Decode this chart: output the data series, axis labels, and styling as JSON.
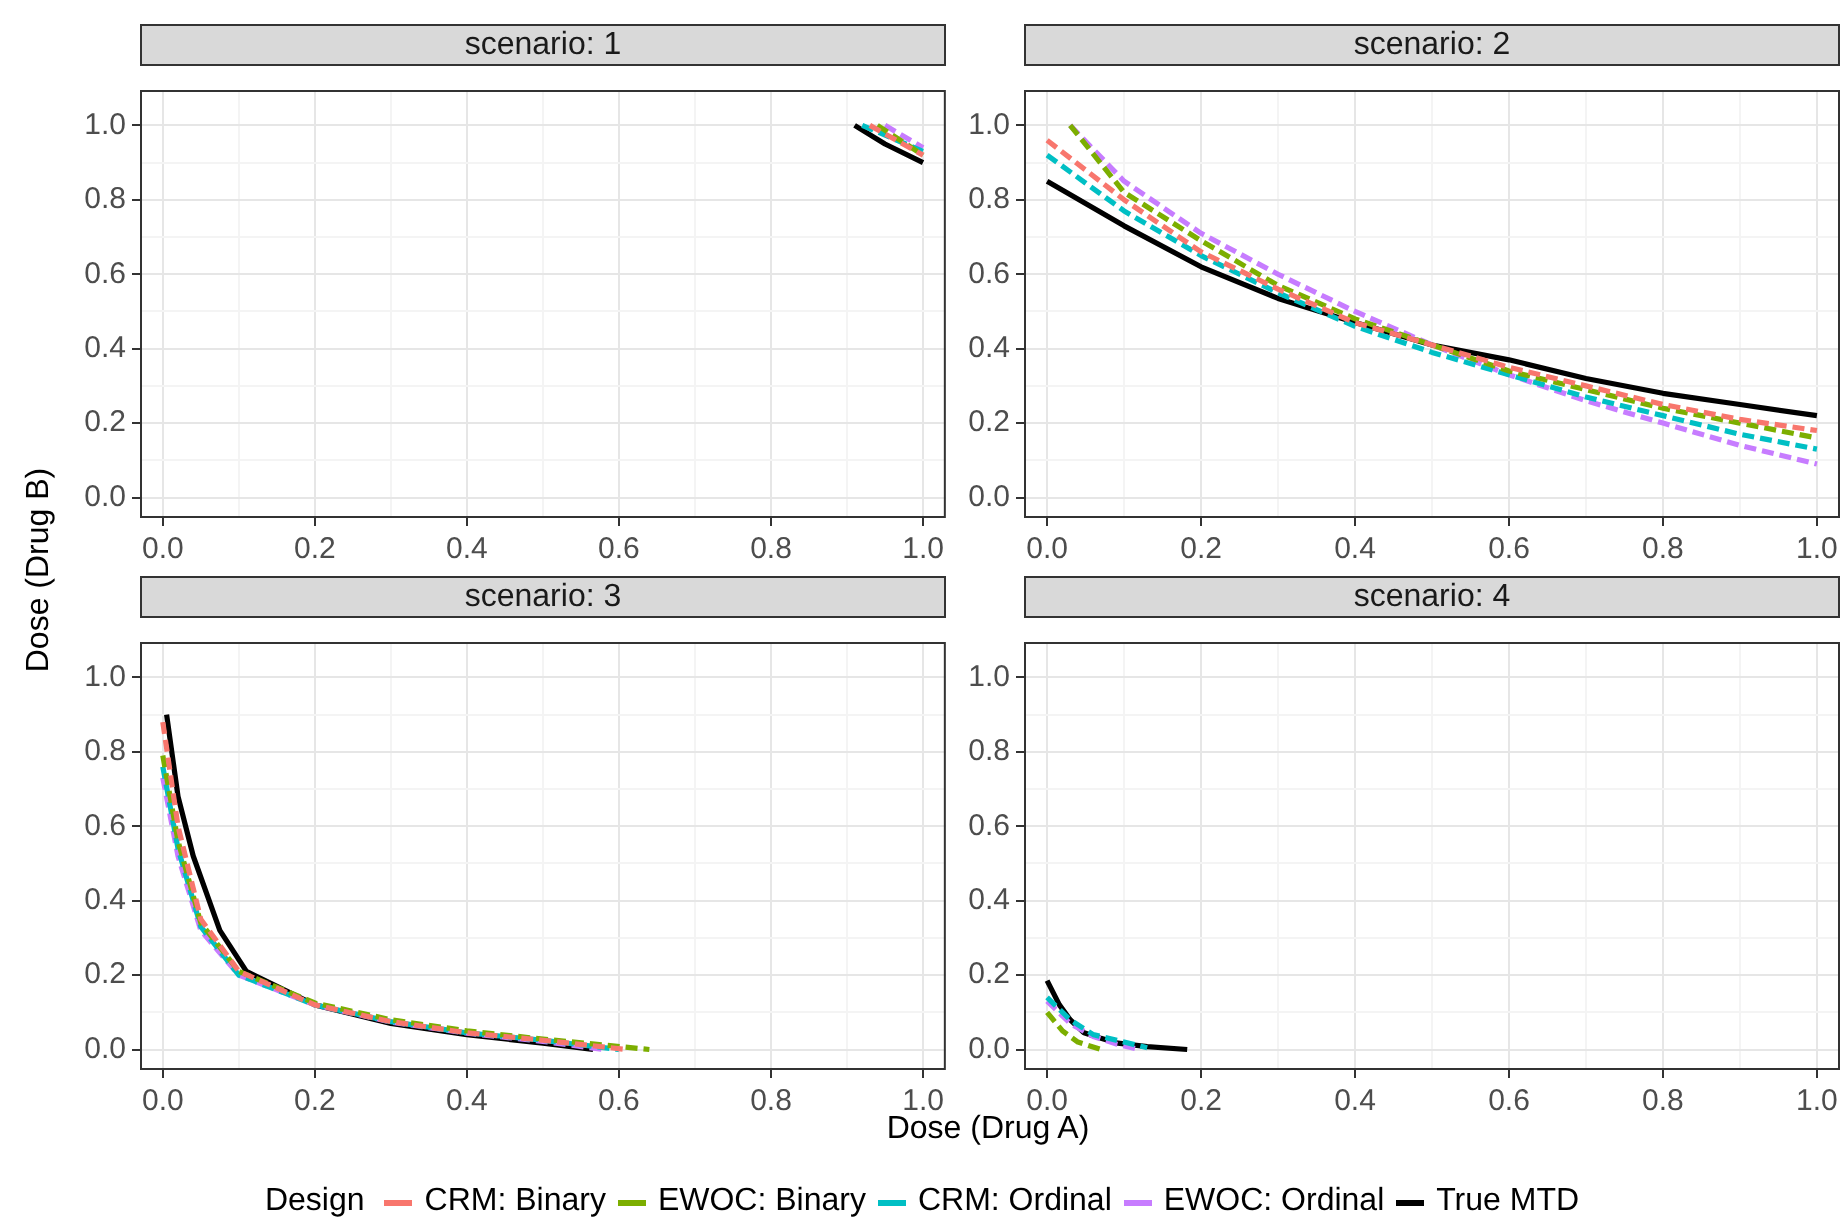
{
  "chart_data": [
    {
      "type": "line",
      "title": "scenario: 1",
      "ylabel": "Dose (Drug B)",
      "legend_title": "Design",
      "grid": true,
      "legend": "bottom",
      "line_style": "dashed",
      "xlim": [
        -0.03,
        1.03
      ],
      "ylim": [
        -0.055,
        1.095
      ],
      "xticks": [
        {
          "value": 0,
          "label": "0.0"
        },
        {
          "value": 0.1,
          "label": null
        },
        0.2,
        {
          "value": 0.3,
          "label": null
        },
        0.4,
        {
          "value": 0.5,
          "label": null
        },
        0.6,
        {
          "value": 0.7,
          "label": null
        },
        0.8,
        {
          "value": 0.9,
          "label": null
        },
        {
          "value": 1,
          "label": "1.0"
        }
      ],
      "yticks": [
        {
          "value": 0,
          "label": "0.0"
        },
        {
          "value": 0.1,
          "label": null
        },
        0.2,
        {
          "value": 0.3,
          "label": null
        },
        0.4,
        {
          "value": 0.5,
          "label": null
        },
        0.6,
        {
          "value": 0.7,
          "label": null
        },
        0.8,
        {
          "value": 0.9,
          "label": null
        },
        {
          "value": 1,
          "label": "1.0"
        }
      ],
      "series": [
        {
          "name": "CRM: Binary",
          "color": "#f8766d",
          "x": [
            0.93,
            1.0
          ],
          "values": [
            1.0,
            0.92
          ]
        },
        {
          "name": "EWOC: Binary",
          "color": "#7cae00",
          "x": [
            0.94,
            1.0
          ],
          "values": [
            1.0,
            0.92
          ]
        },
        {
          "name": "CRM: Ordinal",
          "color": "#00bfc4",
          "x": [
            0.92,
            1.0
          ],
          "values": [
            1.0,
            0.93
          ]
        },
        {
          "name": "EWOC: Ordinal",
          "color": "#c77cff",
          "x": [
            0.95,
            1.0
          ],
          "values": [
            1.0,
            0.94
          ]
        },
        {
          "name": "True MTD",
          "color": "#000000",
          "line_style": "solid",
          "x": [
            0.91,
            0.95,
            1.0
          ],
          "values": [
            1.0,
            0.95,
            0.9
          ]
        }
      ]
    },
    {
      "type": "line",
      "title": "scenario: 2",
      "grid": true,
      "legend": false,
      "line_style": "dashed",
      "xlim": [
        -0.03,
        1.03
      ],
      "ylim": [
        -0.055,
        1.095
      ],
      "xticks": [
        {
          "value": 0,
          "label": "0.0"
        },
        {
          "value": 0.1,
          "label": null
        },
        0.2,
        {
          "value": 0.3,
          "label": null
        },
        0.4,
        {
          "value": 0.5,
          "label": null
        },
        0.6,
        {
          "value": 0.7,
          "label": null
        },
        0.8,
        {
          "value": 0.9,
          "label": null
        },
        {
          "value": 1,
          "label": "1.0"
        }
      ],
      "yticks": [
        {
          "value": 0,
          "label": "0.0"
        },
        {
          "value": 0.1,
          "label": null
        },
        0.2,
        {
          "value": 0.3,
          "label": null
        },
        0.4,
        {
          "value": 0.5,
          "label": null
        },
        0.6,
        {
          "value": 0.7,
          "label": null
        },
        0.8,
        {
          "value": 0.9,
          "label": null
        },
        {
          "value": 1,
          "label": "1.0"
        }
      ],
      "series": [
        {
          "color": "#f8766d",
          "x": [
            0,
            0.1,
            0.2,
            0.3,
            0.4,
            0.5,
            0.6,
            0.7,
            0.8,
            0.9,
            1.0
          ],
          "values": [
            0.96,
            0.8,
            0.66,
            0.56,
            0.47,
            0.41,
            0.35,
            0.3,
            0.25,
            0.21,
            0.18
          ]
        },
        {
          "color": "#7cae00",
          "x": [
            0.03,
            0.1,
            0.2,
            0.3,
            0.4,
            0.5,
            0.6,
            0.7,
            0.8,
            0.9,
            1.0
          ],
          "values": [
            1.0,
            0.82,
            0.69,
            0.57,
            0.48,
            0.41,
            0.34,
            0.29,
            0.24,
            0.2,
            0.16
          ]
        },
        {
          "color": "#00bfc4",
          "x": [
            0,
            0.1,
            0.2,
            0.3,
            0.4,
            0.5,
            0.6,
            0.7,
            0.8,
            0.9,
            1.0
          ],
          "values": [
            0.92,
            0.77,
            0.65,
            0.55,
            0.46,
            0.39,
            0.33,
            0.27,
            0.22,
            0.17,
            0.13
          ]
        },
        {
          "color": "#c77cff",
          "x": [
            0.03,
            0.1,
            0.2,
            0.3,
            0.4,
            0.5,
            0.6,
            0.7,
            0.8,
            0.9,
            1.0
          ],
          "values": [
            1.0,
            0.85,
            0.71,
            0.6,
            0.5,
            0.41,
            0.33,
            0.26,
            0.2,
            0.14,
            0.09
          ]
        },
        {
          "color": "#000000",
          "line_style": "solid",
          "x": [
            0,
            0.1,
            0.2,
            0.3,
            0.4,
            0.5,
            0.6,
            0.7,
            0.8,
            0.9,
            1.0
          ],
          "values": [
            0.85,
            0.73,
            0.62,
            0.535,
            0.47,
            0.41,
            0.37,
            0.32,
            0.28,
            0.25,
            0.22
          ]
        }
      ]
    },
    {
      "type": "line",
      "title": "scenario: 3",
      "xlabel": "Dose (Drug A)",
      "grid": true,
      "legend": false,
      "line_style": "dashed",
      "xlim": [
        -0.03,
        1.03
      ],
      "ylim": [
        -0.055,
        1.095
      ],
      "xticks": [
        {
          "value": 0,
          "label": "0.0"
        },
        {
          "value": 0.1,
          "label": null
        },
        0.2,
        {
          "value": 0.3,
          "label": null
        },
        0.4,
        {
          "value": 0.5,
          "label": null
        },
        0.6,
        {
          "value": 0.7,
          "label": null
        },
        0.8,
        {
          "value": 0.9,
          "label": null
        },
        {
          "value": 1,
          "label": "1.0"
        }
      ],
      "yticks": [
        {
          "value": 0,
          "label": "0.0"
        },
        {
          "value": 0.1,
          "label": null
        },
        0.2,
        {
          "value": 0.3,
          "label": null
        },
        0.4,
        {
          "value": 0.5,
          "label": null
        },
        0.6,
        {
          "value": 0.7,
          "label": null
        },
        0.8,
        {
          "value": 0.9,
          "label": null
        },
        {
          "value": 1,
          "label": "1.0"
        }
      ],
      "series": [
        {
          "color": "#f8766d",
          "x": [
            0,
            0.02,
            0.05,
            0.1,
            0.2,
            0.3,
            0.4,
            0.5,
            0.61
          ],
          "values": [
            0.88,
            0.6,
            0.35,
            0.21,
            0.12,
            0.075,
            0.045,
            0.025,
            0
          ]
        },
        {
          "color": "#7cae00",
          "x": [
            0,
            0.02,
            0.05,
            0.1,
            0.2,
            0.3,
            0.4,
            0.5,
            0.64
          ],
          "values": [
            0.79,
            0.56,
            0.34,
            0.21,
            0.125,
            0.08,
            0.05,
            0.028,
            0
          ]
        },
        {
          "color": "#00bfc4",
          "x": [
            0,
            0.02,
            0.05,
            0.1,
            0.2,
            0.3,
            0.4,
            0.5,
            0.6
          ],
          "values": [
            0.76,
            0.54,
            0.33,
            0.2,
            0.12,
            0.075,
            0.045,
            0.025,
            0
          ]
        },
        {
          "color": "#c77cff",
          "x": [
            0,
            0.02,
            0.05,
            0.1,
            0.2,
            0.3,
            0.4,
            0.5,
            0.58
          ],
          "values": [
            0.73,
            0.52,
            0.32,
            0.2,
            0.12,
            0.074,
            0.044,
            0.022,
            0
          ]
        },
        {
          "color": "#000000",
          "line_style": "solid",
          "x": [
            0.005,
            0.02,
            0.04,
            0.075,
            0.11,
            0.2,
            0.3,
            0.4,
            0.5,
            0.566
          ],
          "values": [
            0.9,
            0.68,
            0.52,
            0.32,
            0.21,
            0.12,
            0.07,
            0.04,
            0.017,
            0
          ]
        }
      ]
    },
    {
      "type": "line",
      "title": "scenario: 4",
      "grid": true,
      "legend": false,
      "line_style": "dashed",
      "xlim": [
        -0.03,
        1.03
      ],
      "ylim": [
        -0.055,
        1.095
      ],
      "xticks": [
        {
          "value": 0,
          "label": "0.0"
        },
        {
          "value": 0.1,
          "label": null
        },
        0.2,
        {
          "value": 0.3,
          "label": null
        },
        0.4,
        {
          "value": 0.5,
          "label": null
        },
        0.6,
        {
          "value": 0.7,
          "label": null
        },
        0.8,
        {
          "value": 0.9,
          "label": null
        },
        {
          "value": 1,
          "label": "1.0"
        }
      ],
      "yticks": [
        {
          "value": 0,
          "label": "0.0"
        },
        {
          "value": 0.1,
          "label": null
        },
        0.2,
        {
          "value": 0.3,
          "label": null
        },
        0.4,
        {
          "value": 0.5,
          "label": null
        },
        0.6,
        {
          "value": 0.7,
          "label": null
        },
        0.8,
        {
          "value": 0.9,
          "label": null
        },
        {
          "value": 1,
          "label": "1.0"
        }
      ],
      "series": [
        {
          "color": "#7cae00",
          "x": [
            0,
            0.02,
            0.04,
            0.07
          ],
          "values": [
            0.1,
            0.05,
            0.02,
            0
          ]
        },
        {
          "color": "#00bfc4",
          "x": [
            0,
            0.03,
            0.06,
            0.1,
            0.13
          ],
          "values": [
            0.14,
            0.08,
            0.04,
            0.02,
            0.005
          ]
        },
        {
          "color": "#c77cff",
          "x": [
            0,
            0.03,
            0.06,
            0.09,
            0.12
          ],
          "values": [
            0.13,
            0.07,
            0.035,
            0.015,
            0
          ]
        },
        {
          "color": "#000000",
          "line_style": "solid",
          "x": [
            0,
            0.016,
            0.03,
            0.048,
            0.07,
            0.092,
            0.13,
            0.182
          ],
          "values": [
            0.185,
            0.12,
            0.08,
            0.045,
            0.03,
            0.017,
            0.008,
            0
          ]
        }
      ]
    }
  ]
}
